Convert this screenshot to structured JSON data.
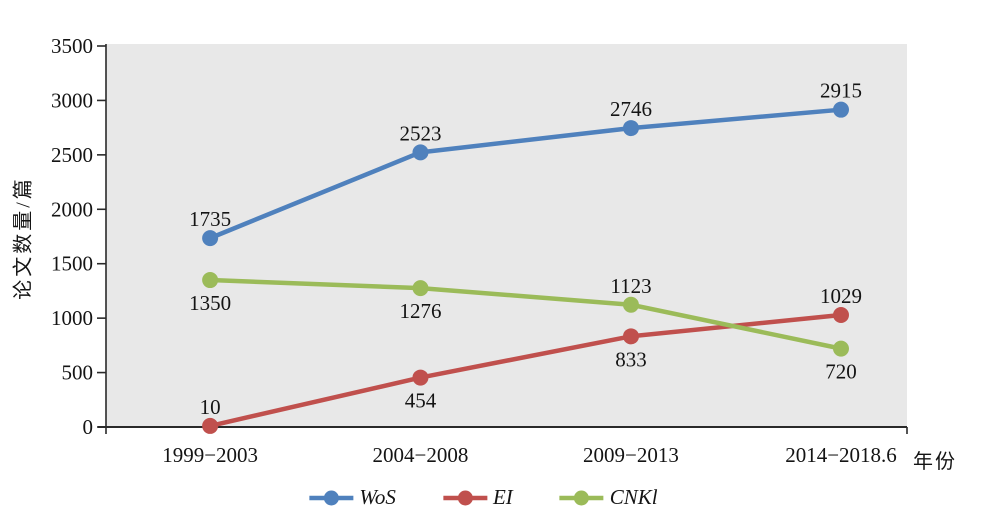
{
  "chart_data": {
    "type": "line",
    "title": "",
    "categories": [
      "1999−2003",
      "2004−2008",
      "2009−2013",
      "2014−2018.6"
    ],
    "x_axis_unit": "年份",
    "ylabel": "论文数量/篇",
    "ylim": [
      0,
      3500
    ],
    "y_ticks": [
      0,
      500,
      1000,
      1500,
      2000,
      2500,
      3000,
      3500
    ],
    "grid": false,
    "legend_position": "bottom",
    "plot_background": "#e8e8e8",
    "axis_color": "#2a2a2a",
    "series": [
      {
        "name": "WoS",
        "color": "#4f81bd",
        "values": [
          1735,
          2523,
          2746,
          2915
        ],
        "label_placement": [
          "above",
          "above",
          "above",
          "above"
        ]
      },
      {
        "name": "EI",
        "color": "#c0504d",
        "values": [
          10,
          454,
          833,
          1029
        ],
        "label_placement": [
          "above",
          "below",
          "below",
          "above"
        ]
      },
      {
        "name": "CNKl",
        "color": "#9bbb59",
        "values": [
          1350,
          1276,
          1123,
          720
        ],
        "label_placement": [
          "below",
          "below",
          "above",
          "below"
        ]
      }
    ]
  }
}
